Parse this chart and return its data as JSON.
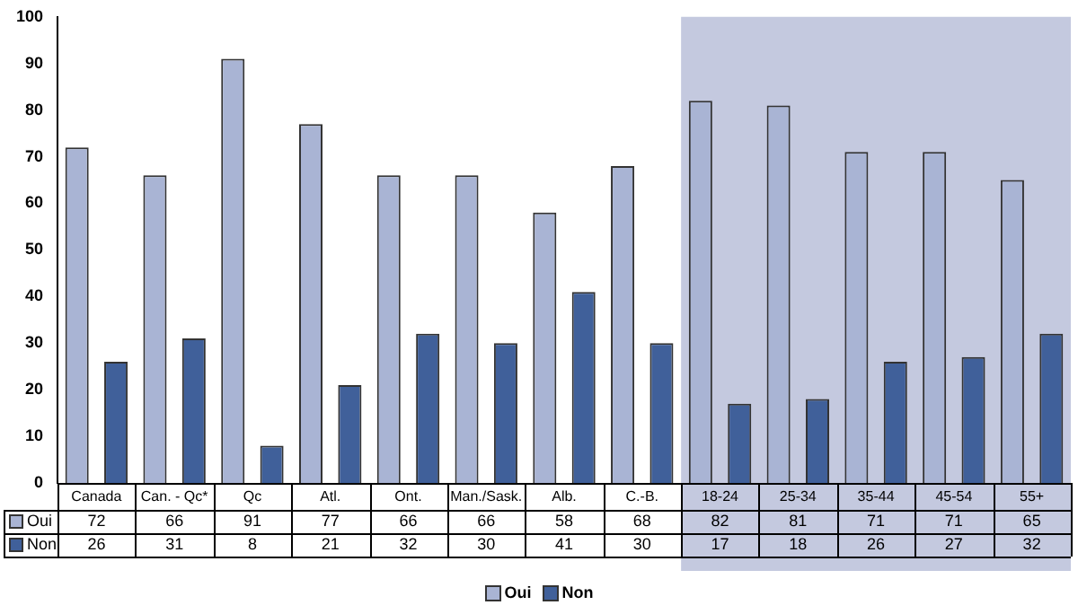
{
  "chart_data": {
    "type": "bar",
    "categories": [
      "Canada",
      "Can. - Qc*",
      "Qc",
      "Atl.",
      "Ont.",
      "Man./Sask.",
      "Alb.",
      "C.-B.",
      "18-24",
      "25-34",
      "35-44",
      "45-54",
      "55+"
    ],
    "series": [
      {
        "name": "Oui",
        "color": "#a9b4d4",
        "values": [
          72,
          66,
          91,
          77,
          66,
          66,
          58,
          68,
          82,
          81,
          71,
          71,
          65
        ]
      },
      {
        "name": "Non",
        "color": "#40609a",
        "values": [
          26,
          31,
          8,
          21,
          32,
          30,
          41,
          30,
          17,
          18,
          26,
          27,
          32
        ]
      }
    ],
    "ylim": [
      0,
      100
    ],
    "yticks": [
      0,
      10,
      20,
      30,
      40,
      50,
      60,
      70,
      80,
      90,
      100
    ],
    "grid": false,
    "legend": "bottom",
    "data_labels": true,
    "bands": [
      {
        "axis": "x",
        "from": "18-24",
        "to": "55+",
        "color": "#c4c9df"
      }
    ]
  }
}
